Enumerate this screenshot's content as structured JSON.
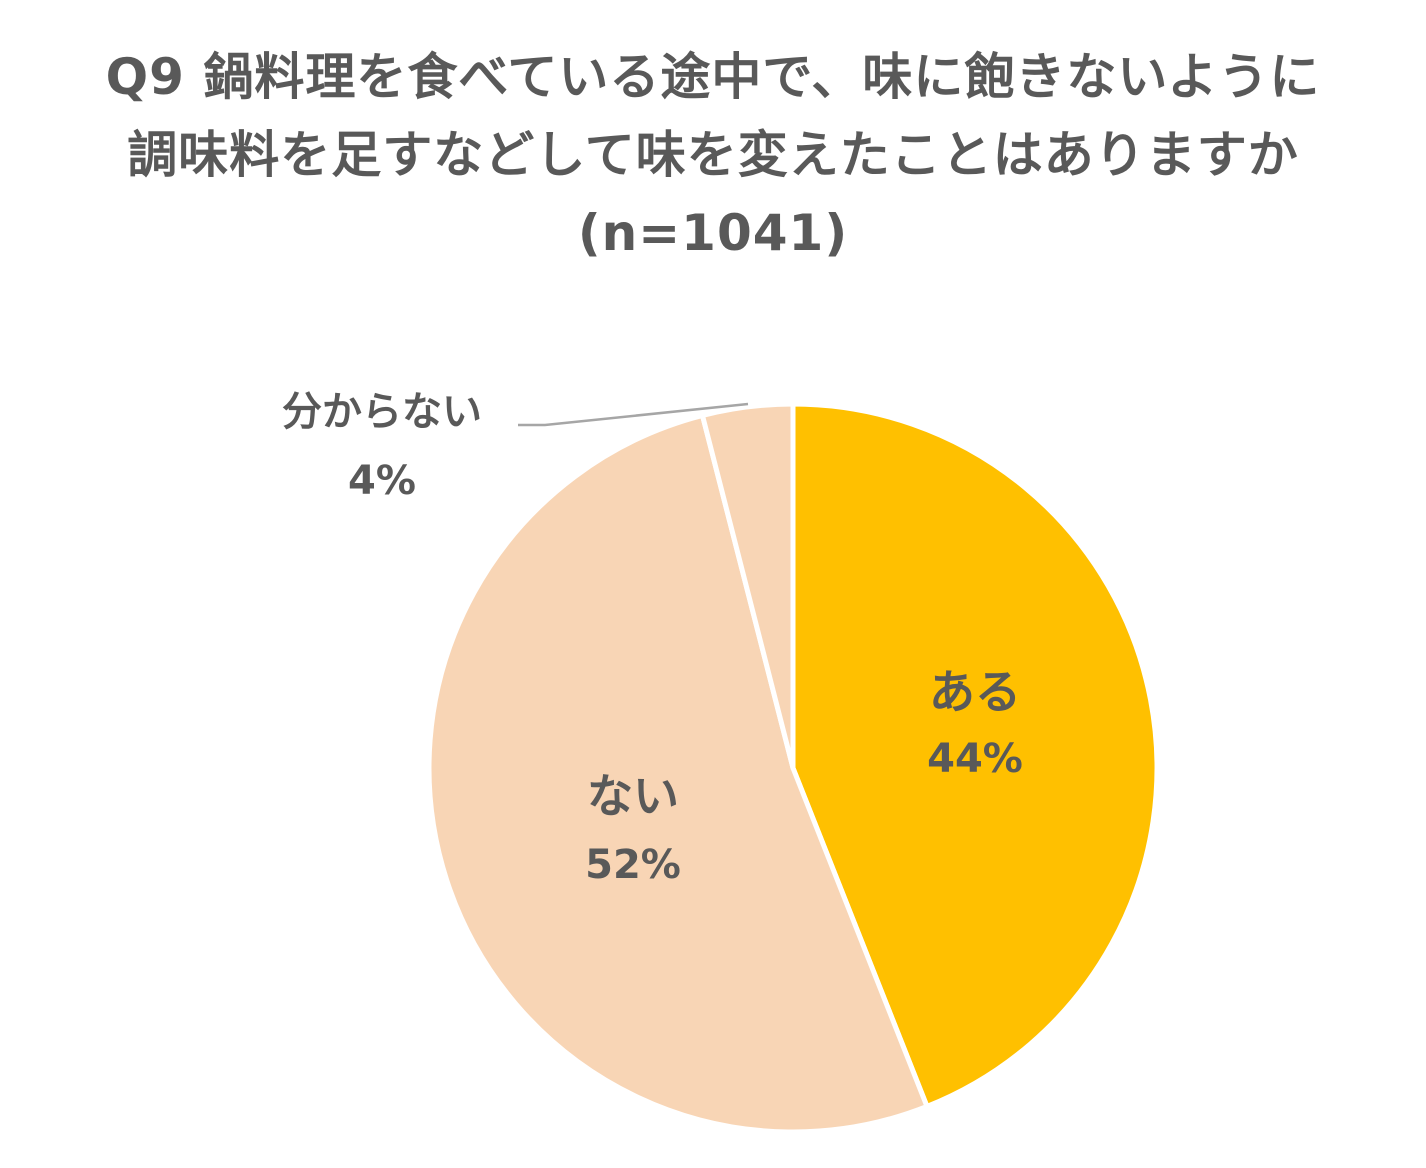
{
  "title_lines": [
    "Q9 鍋料理を食べている途中で、味に飽きないように",
    "調味料を足すなどして味を変えたことはありますか",
    "(n=1041)"
  ],
  "colors": {
    "aru": "#FFC000",
    "nai": "#F8D5B5",
    "wakaranai": "#F8D5B5",
    "border": "#FFFFFF",
    "text": "#595959",
    "leader": "#A6A6A6"
  },
  "chart_data": {
    "type": "pie",
    "title": "Q9 鍋料理を食べている途中で、味に飽きないように調味料を足すなどして味を変えたことはありますか (n=1041)",
    "start_angle_deg": 0,
    "direction": "clockwise",
    "slices": [
      {
        "label": "ある",
        "value": 44,
        "value_label": "44%",
        "color_key": "aru"
      },
      {
        "label": "ない",
        "value": 52,
        "value_label": "52%",
        "color_key": "nai"
      },
      {
        "label": "分からない",
        "value": 4,
        "value_label": "4%",
        "color_key": "wakaranai"
      }
    ]
  }
}
